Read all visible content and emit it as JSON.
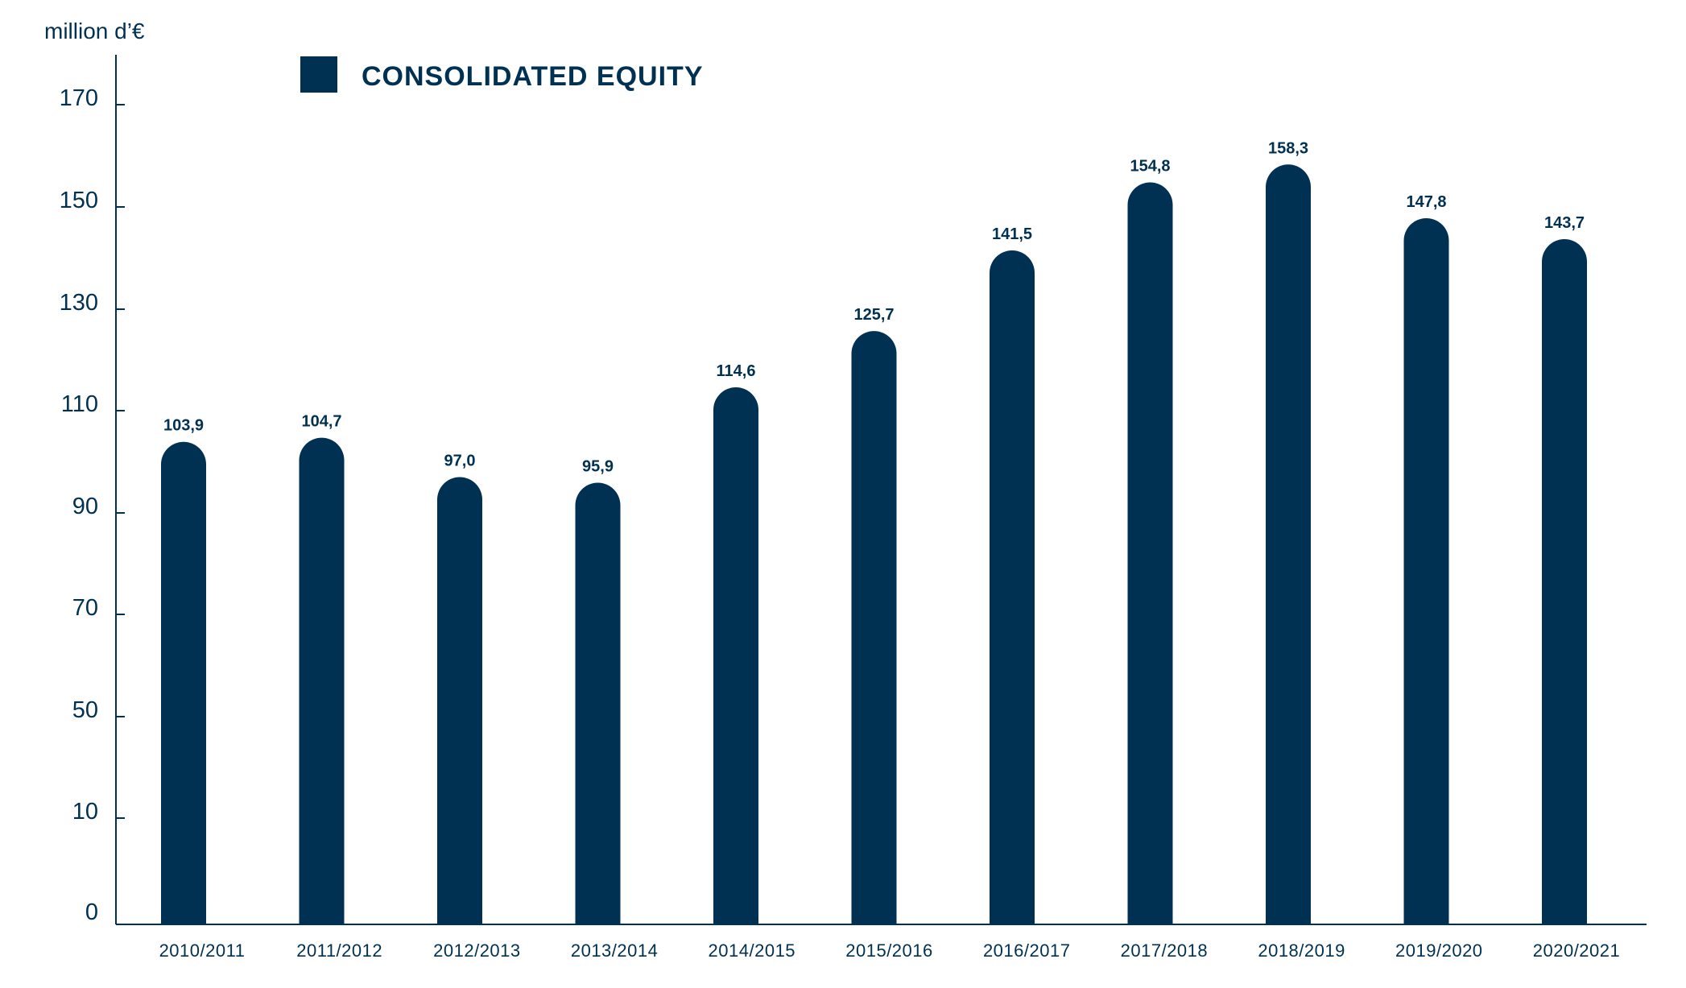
{
  "chart_data": {
    "type": "bar",
    "title": "",
    "unit_label": "million d’€",
    "legend": {
      "label": "CONSOLIDATED EQUITY",
      "placement": "top-left"
    },
    "categories": [
      "2010/2011",
      "2011/2012",
      "2012/2013",
      "2013/2014",
      "2014/2015",
      "2015/2016",
      "2016/2017",
      "2017/2018",
      "2018/2019",
      "2019/2020",
      "2020/2021"
    ],
    "values": [
      103.9,
      104.7,
      97.0,
      95.9,
      114.6,
      125.7,
      141.5,
      154.8,
      158.3,
      147.8,
      143.7
    ],
    "value_labels": [
      "103,9",
      "104,7",
      "97,0",
      "95,9",
      "114,6",
      "125,7",
      "141,5",
      "154,8",
      "158,3",
      "147,8",
      "143,7"
    ],
    "y_ticks": [
      "0",
      "10",
      "50",
      "70",
      "90",
      "110",
      "130",
      "150",
      "170"
    ],
    "xlabel": "",
    "ylabel": "",
    "grid": false,
    "color": "#003152"
  }
}
